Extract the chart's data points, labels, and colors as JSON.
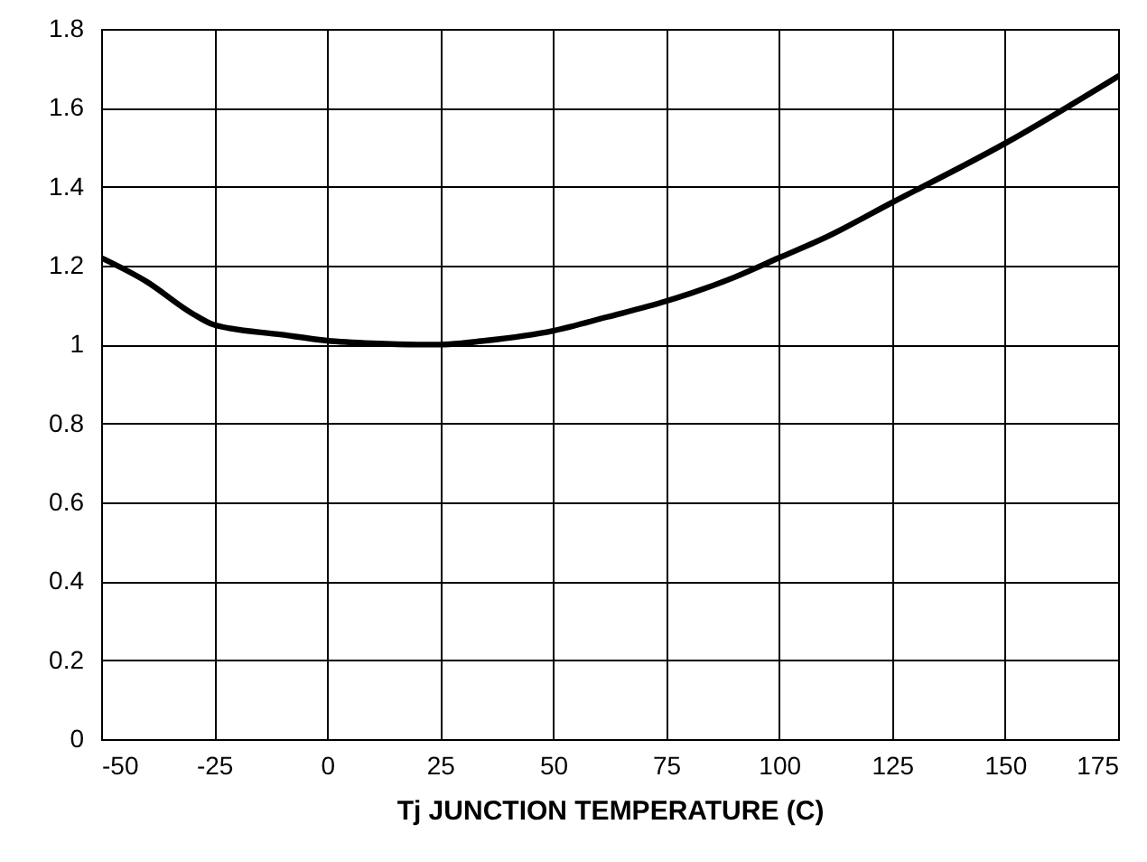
{
  "chart_data": {
    "type": "line",
    "xlabel": "Tj JUNCTION TEMPERATURE (C)",
    "x": [
      -50,
      -40,
      -30,
      -25,
      -10,
      0,
      10,
      20,
      25,
      35,
      50,
      62,
      75,
      90,
      100,
      110,
      125,
      150,
      175
    ],
    "series": [
      {
        "color": "#000000",
        "values": [
          1.22,
          1.16,
          1.08,
          1.05,
          1.025,
          1.01,
          1.003,
          1.0,
          1.0,
          1.01,
          1.035,
          1.07,
          1.11,
          1.17,
          1.22,
          1.27,
          1.36,
          1.51,
          1.68
        ]
      }
    ],
    "xlim": [
      -50,
      175
    ],
    "xticks": [
      -50,
      -25,
      0,
      25,
      50,
      75,
      100,
      125,
      150,
      175
    ],
    "ylim": [
      0,
      1.8
    ],
    "yticks": [
      0,
      0.2,
      0.4,
      0.6,
      0.8,
      1,
      1.2,
      1.4,
      1.6,
      1.8
    ],
    "grid": true,
    "marker": "none",
    "line_style": "solid"
  }
}
